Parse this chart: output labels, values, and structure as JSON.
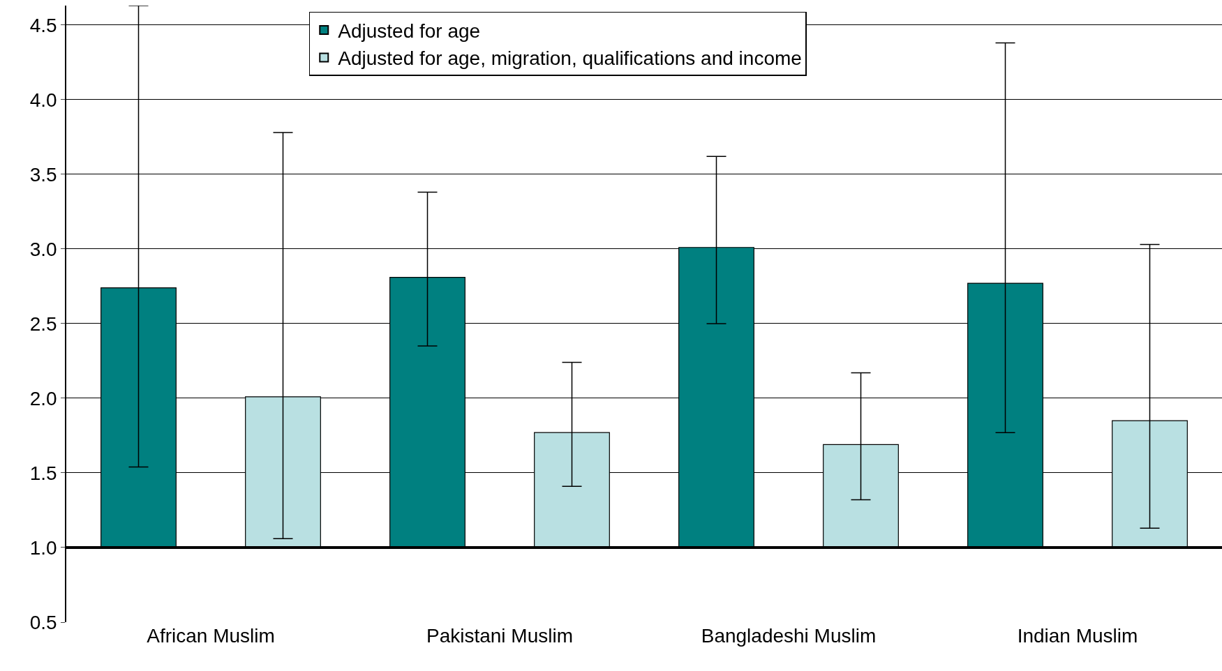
{
  "chart_data": {
    "type": "bar",
    "categories": [
      "African Muslim",
      "Pakistani Muslim",
      "Bangladeshi Muslim",
      "Indian Muslim"
    ],
    "series": [
      {
        "name": "Adjusted for age",
        "color": "#008080",
        "base": [
          1,
          1,
          1,
          1
        ],
        "values": [
          1.74,
          1.81,
          2.01,
          1.77
        ],
        "errors": [
          [
            1.54,
            4.63
          ],
          [
            2.35,
            3.38
          ],
          [
            2.5,
            3.62
          ],
          [
            1.77,
            4.38
          ]
        ]
      },
      {
        "name": "Adjusted for age, migration, qualifications and income",
        "color": "#b9e0e2",
        "base": [
          1,
          1,
          1,
          1
        ],
        "values": [
          1.01,
          0.77,
          0.69,
          0.85
        ],
        "errors": [
          [
            1.06,
            3.78
          ],
          [
            1.41,
            2.24
          ],
          [
            1.32,
            2.17
          ],
          [
            1.13,
            3.03
          ]
        ]
      }
    ],
    "ylim": [
      0.5,
      4.63
    ],
    "yticks": [
      {
        "value": 0.5,
        "label": "0.5"
      },
      {
        "value": 1,
        "label": "1.0"
      },
      {
        "value": 1.5,
        "label": "1.5"
      },
      {
        "value": 2,
        "label": "2.0"
      },
      {
        "value": 2.5,
        "label": "2.5"
      },
      {
        "value": 3,
        "label": "3.0"
      },
      {
        "value": 3.5,
        "label": "3.5"
      },
      {
        "value": 4,
        "label": "4.0"
      },
      {
        "value": 4.5,
        "label": "4.5"
      }
    ],
    "ref_lines": [
      {
        "axis": "y",
        "value": 1,
        "color": "#000000"
      }
    ],
    "grid": "y",
    "legend": "top"
  }
}
